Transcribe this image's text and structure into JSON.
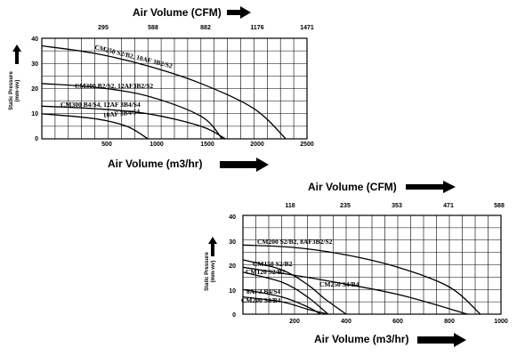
{
  "chart_data": [
    {
      "type": "line",
      "title": "",
      "top_axis_label": "Air Volume (CFM)",
      "xlabel": "Air Volume (m3/hr)",
      "ylabel": "Static Pressure",
      "ylabel_unit": "(mm-wv)",
      "xlim": [
        0,
        2500
      ],
      "ylim": [
        0,
        40
      ],
      "x_ticks": [
        "500",
        "1000",
        "1500",
        "2000",
        "2500"
      ],
      "x_tick_values": [
        500,
        1000,
        1500,
        2000,
        2500
      ],
      "y_ticks": [
        "0",
        "10",
        "20",
        "30",
        "40"
      ],
      "top_ticks": [
        "295",
        "588",
        "882",
        "1176",
        "1471"
      ],
      "grid": true,
      "series": [
        {
          "name": "CM250 S2/B2, 10AF 3B2/S2",
          "x": [
            0,
            500,
            1000,
            1500,
            2000,
            2300
          ],
          "y": [
            37,
            34,
            29,
            22,
            12,
            0
          ]
        },
        {
          "name": "CM300 B2/S2, 12AF3B2/S2",
          "x": [
            0,
            500,
            1000,
            1500,
            1700
          ],
          "y": [
            22,
            20.5,
            17,
            9,
            0
          ]
        },
        {
          "name": "CM300 B4/S4, 12AF 3B4/S4",
          "x": [
            0,
            500,
            1000,
            1500,
            1730
          ],
          "y": [
            13,
            12,
            10,
            5,
            0
          ]
        },
        {
          "name": "10AF 3B4/S4",
          "x": [
            0,
            500,
            800,
            1000
          ],
          "y": [
            10,
            8,
            5,
            0
          ]
        }
      ]
    },
    {
      "type": "line",
      "title": "",
      "top_axis_label": "Air Volume (CFM)",
      "xlabel": "Air Volume (m3/hr)",
      "ylabel": "Static Pressure",
      "ylabel_unit": "(mm-wv)",
      "xlim": [
        0,
        1000
      ],
      "ylim": [
        0,
        40
      ],
      "x_ticks": [
        "200",
        "400",
        "600",
        "800",
        "1000"
      ],
      "x_tick_values": [
        200,
        400,
        600,
        800,
        1000
      ],
      "y_ticks": [
        "0",
        "10",
        "20",
        "30",
        "40"
      ],
      "top_ticks": [
        "118",
        "235",
        "353",
        "471",
        "588"
      ],
      "grid": true,
      "series": [
        {
          "name": "CM200 S2/B2, 8AF3B2/S2",
          "x": [
            0,
            200,
            400,
            600,
            800,
            920
          ],
          "y": [
            28,
            27,
            24,
            19,
            11,
            0
          ]
        },
        {
          "name": "CM150 S2/B2",
          "x": [
            0,
            150,
            250,
            320,
            400
          ],
          "y": [
            22,
            18,
            12,
            6,
            0
          ]
        },
        {
          "name": "CM250 S4/B4",
          "x": [
            0,
            300,
            600,
            870
          ],
          "y": [
            19,
            14,
            8,
            0
          ]
        },
        {
          "name": "CM120 S2/B2",
          "x": [
            0,
            150,
            250,
            330
          ],
          "y": [
            17,
            13,
            7,
            0
          ]
        },
        {
          "name": "8AF3 B4/S4",
          "x": [
            0,
            150,
            250,
            300
          ],
          "y": [
            10,
            7,
            3,
            0
          ]
        },
        {
          "name": "CM200 S4/B4",
          "x": [
            0,
            150,
            250,
            330
          ],
          "y": [
            7,
            5,
            2,
            0
          ]
        }
      ]
    }
  ]
}
